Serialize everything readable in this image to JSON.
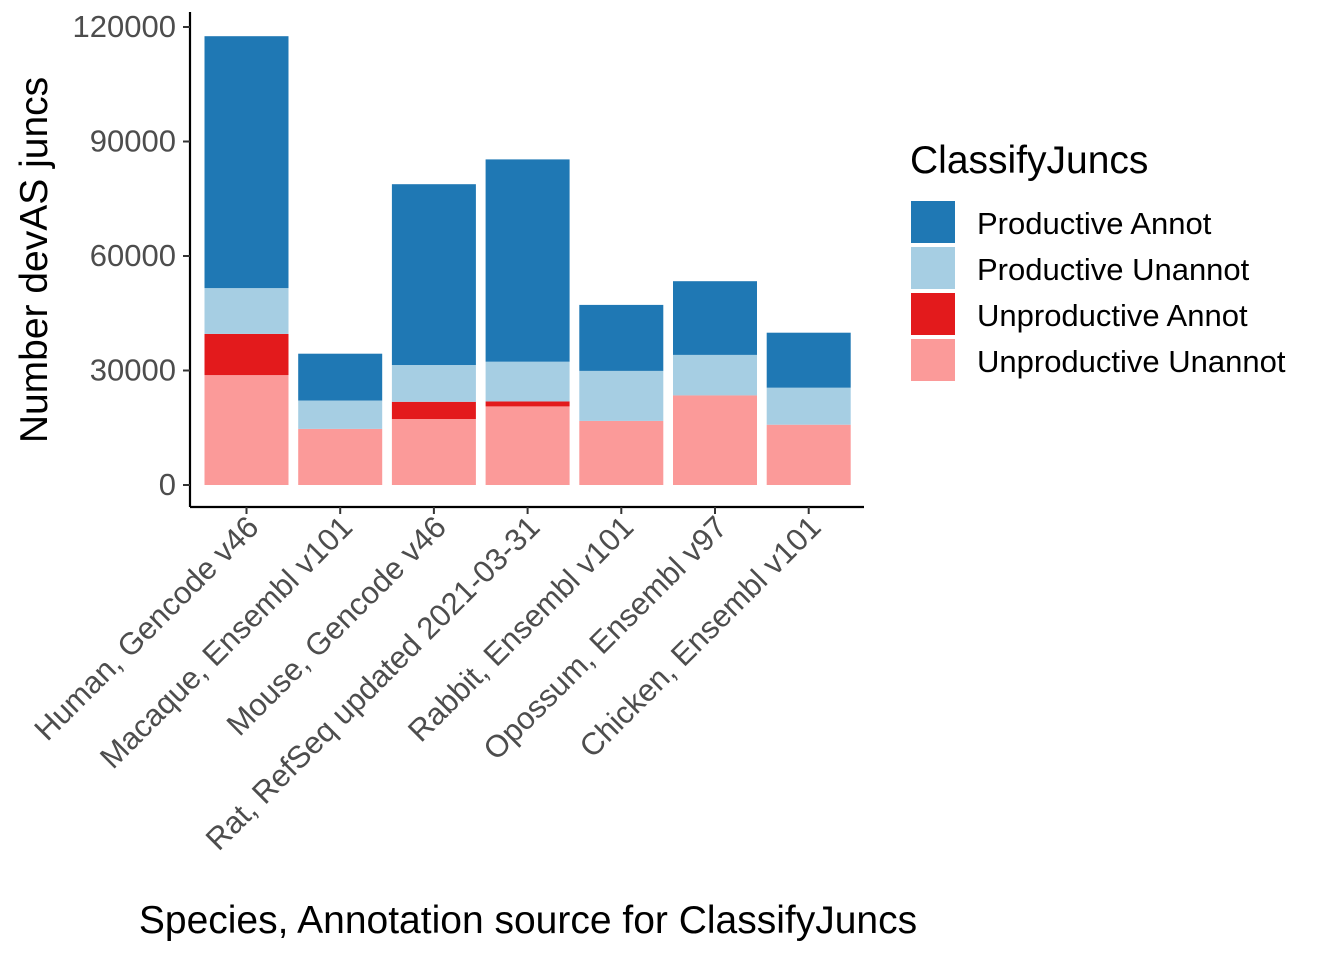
{
  "chart_data": {
    "type": "bar",
    "stacked": true,
    "xlabel": "Species, Annotation source for ClassifyJuncs",
    "ylabel": "Number devAS juncs",
    "ylim": [
      0,
      120000
    ],
    "yticks": [
      0,
      30000,
      60000,
      90000,
      120000
    ],
    "grid": false,
    "legend_title": "ClassifyJuncs",
    "legend_position": "right",
    "categories": [
      "Human, Gencode v46",
      "Macaque, Ensembl v101",
      "Mouse, Gencode v46",
      "Rat, RefSeq updated 2021-03-31",
      "Rabbit, Ensembl v101",
      "Opossum, Ensembl v97",
      "Chicken, Ensembl v101"
    ],
    "series": [
      {
        "name": "Unproductive Unannot",
        "color": "#fb9a99",
        "values": [
          28800,
          14700,
          17300,
          20600,
          16800,
          23500,
          15800
        ]
      },
      {
        "name": "Unproductive Annot",
        "color": "#e31a1c",
        "values": [
          10800,
          0,
          4500,
          1300,
          0,
          0,
          0
        ]
      },
      {
        "name": "Productive Unannot",
        "color": "#a6cee3",
        "values": [
          12000,
          7400,
          9600,
          10400,
          13100,
          10600,
          9700
        ]
      },
      {
        "name": "Productive Annot",
        "color": "#1f78b4",
        "values": [
          66000,
          12300,
          47400,
          53000,
          17300,
          19300,
          14400
        ]
      }
    ],
    "legend_order": [
      "Productive Annot",
      "Productive Unannot",
      "Unproductive Annot",
      "Unproductive Unannot"
    ]
  }
}
